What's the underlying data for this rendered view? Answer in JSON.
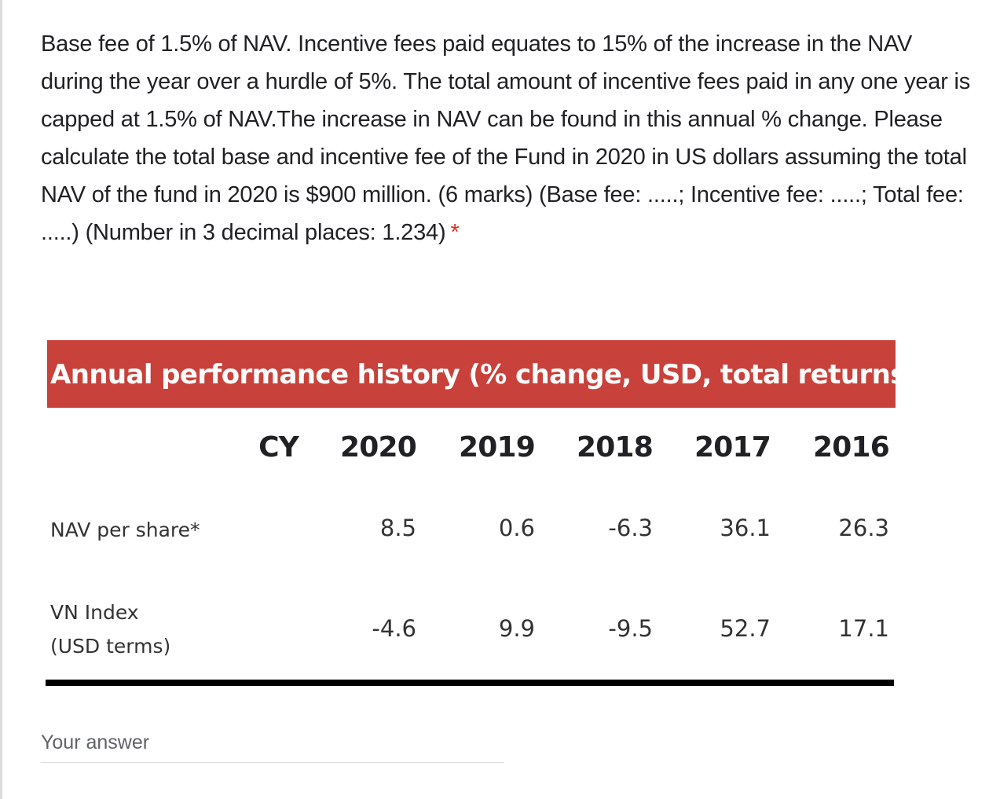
{
  "question": {
    "text": "Base fee of 1.5% of NAV. Incentive fees paid equates to 15% of the increase in the NAV during the year over a hurdle of 5%. The total amount of incentive fees paid in any one year is capped at 1.5% of NAV.The increase in NAV can be found in this annual % change. Please calculate the total base and incentive fee of the Fund in 2020 in US dollars assuming the total NAV of the fund in 2020 is $900 million. (6 marks) (Base fee: .....; Incentive fee: .....; Total fee: .....) (Number in 3 decimal places: 1.234)",
    "required_mark": "*"
  },
  "table": {
    "title": "Annual performance history (% change, USD, total returns)",
    "header_label": "CY",
    "years": [
      "2020",
      "2019",
      "2018",
      "2017",
      "2016"
    ],
    "rows": [
      {
        "label_line1": "NAV per share*",
        "label_line2": "",
        "values": [
          "8.5",
          "0.6",
          "-6.3",
          "36.1",
          "26.3"
        ]
      },
      {
        "label_line1": "VN Index",
        "label_line2": "(USD terms)",
        "values": [
          "-4.6",
          "9.9",
          "-9.5",
          "52.7",
          "17.1"
        ]
      }
    ]
  },
  "answer": {
    "placeholder": "Your answer"
  },
  "colors": {
    "banner": "#c9413b",
    "required": "#d93025"
  }
}
